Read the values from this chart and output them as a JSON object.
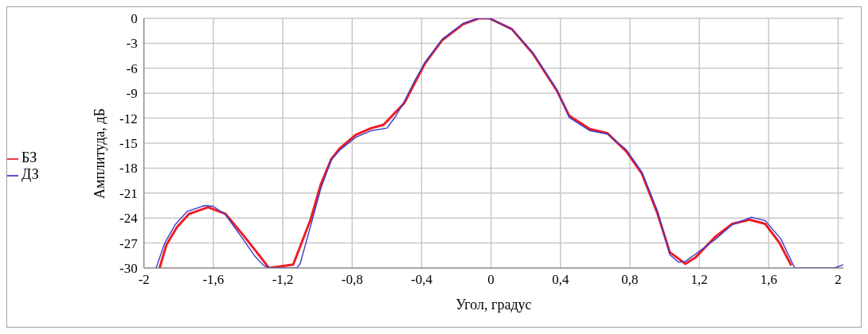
{
  "chart_data": {
    "type": "line",
    "xlabel": "Угол, градус",
    "ylabel": "Амплитуда, дБ",
    "xlim": [
      -2,
      2.03
    ],
    "ylim": [
      -30,
      0
    ],
    "xticks": [
      -2,
      {
        "value": -1.6,
        "label": "-1,6"
      },
      {
        "value": -1.2,
        "label": "-1,2"
      },
      {
        "value": -0.8,
        "label": "-0,8"
      },
      {
        "value": -0.4,
        "label": "-0,4"
      },
      0,
      {
        "value": 0.4,
        "label": "0,4"
      },
      {
        "value": 0.8,
        "label": "0,8"
      },
      {
        "value": 1.2,
        "label": "1,2"
      },
      {
        "value": 1.6,
        "label": "1,6"
      },
      2
    ],
    "yticks": [
      0,
      -3,
      -6,
      -9,
      -12,
      -15,
      -18,
      -21,
      -24,
      -27,
      -30
    ],
    "grid": true,
    "legend": "left",
    "marker": "none",
    "line_style": "solid",
    "ref_lines": [
      {
        "axis": "y",
        "value": -15,
        "color": "#d8d8d8",
        "line_style": "dotted"
      }
    ],
    "series": [
      {
        "name": "БЗ",
        "color": "#ee1c24",
        "x": [
          -1.91,
          -1.87,
          -1.81,
          -1.74,
          -1.63,
          -1.53,
          -1.43,
          -1.35,
          -1.28,
          -1.14,
          -1.04,
          -0.98,
          -0.92,
          -0.87,
          -0.78,
          -0.69,
          -0.62,
          -0.56,
          -0.5,
          -0.44,
          -0.38,
          -0.28,
          -0.16,
          -0.07,
          -0.01,
          0.12,
          0.24,
          0.38,
          0.45,
          0.57,
          0.67,
          0.78,
          0.87,
          0.96,
          1.03,
          1.12,
          1.18,
          1.29,
          1.39,
          1.49,
          1.58,
          1.66,
          1.73
        ],
        "values": [
          -30,
          -27.2,
          -25.1,
          -23.5,
          -22.7,
          -23.5,
          -26,
          -28.1,
          -30,
          -29.6,
          -24.2,
          -19.9,
          -16.9,
          -15.6,
          -14,
          -13.2,
          -12.8,
          -11.5,
          -10.2,
          -7.8,
          -5.4,
          -2.6,
          -0.7,
          0,
          0,
          -1.3,
          -4.2,
          -8.7,
          -11.7,
          -13.3,
          -13.8,
          -16,
          -18.7,
          -23.5,
          -28.1,
          -29.5,
          -28.7,
          -26.3,
          -24.7,
          -24.2,
          -24.7,
          -26.9,
          -29.7
        ]
      },
      {
        "name": "ДЗ",
        "color": "#3a3ad0",
        "x": [
          -1.93,
          -1.88,
          -1.82,
          -1.75,
          -1.65,
          -1.6,
          -1.53,
          -1.43,
          -1.36,
          -1.31,
          -1.28,
          -1.12,
          -1.1,
          -1.04,
          -0.98,
          -0.92,
          -0.87,
          -0.78,
          -0.69,
          -0.6,
          -0.55,
          -0.5,
          -0.44,
          -0.38,
          -0.28,
          -0.16,
          -0.07,
          -0.01,
          0.12,
          0.24,
          0.38,
          0.45,
          0.57,
          0.67,
          0.78,
          0.87,
          0.96,
          1.03,
          1.08,
          1.12,
          1.18,
          1.29,
          1.39,
          1.5,
          1.58,
          1.67,
          1.75,
          1.98,
          2.03
        ],
        "values": [
          -30,
          -27,
          -24.8,
          -23.2,
          -22.5,
          -22.6,
          -23.6,
          -26.5,
          -28.6,
          -29.7,
          -30,
          -30,
          -29.5,
          -25,
          -20.4,
          -17,
          -15.8,
          -14.3,
          -13.5,
          -13.2,
          -11.8,
          -10,
          -7.5,
          -5.3,
          -2.5,
          -0.6,
          0,
          0,
          -1.3,
          -4.1,
          -8.6,
          -11.9,
          -13.5,
          -13.9,
          -15.8,
          -18.5,
          -23.2,
          -28.4,
          -29.3,
          -29.2,
          -28.3,
          -26.6,
          -24.8,
          -23.9,
          -24.3,
          -26.5,
          -30,
          -30,
          -29.6
        ]
      }
    ]
  }
}
